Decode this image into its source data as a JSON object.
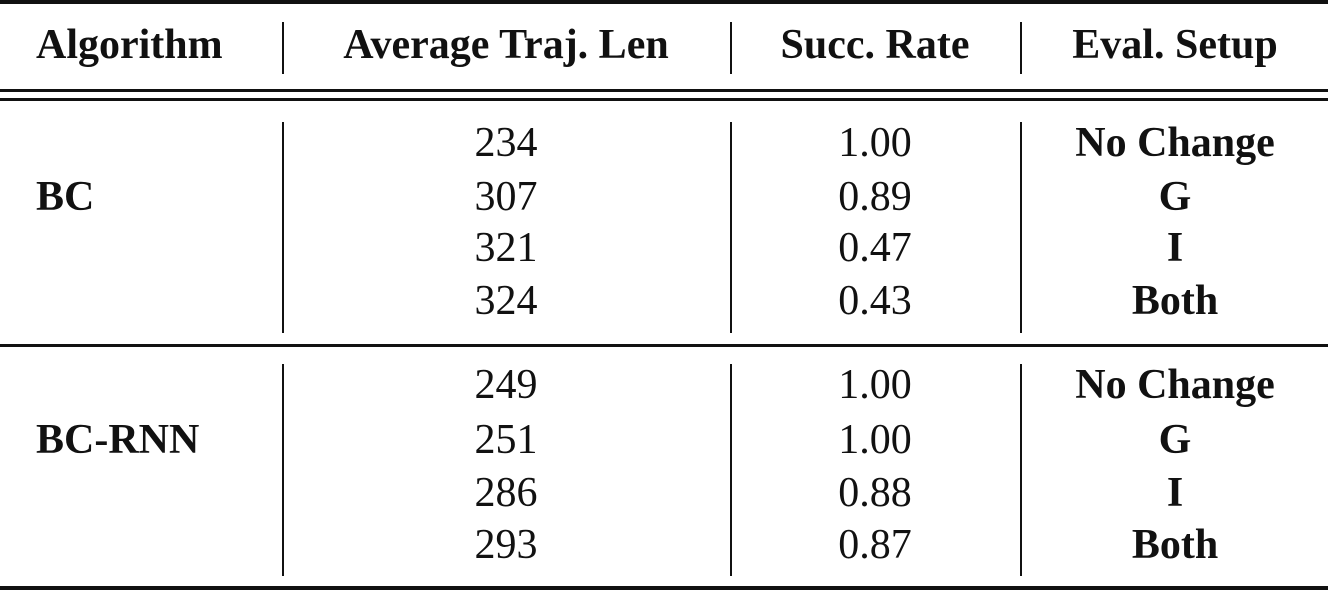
{
  "table": {
    "headers": [
      "Algorithm",
      "Average Traj. Len",
      "Succ. Rate",
      "Eval. Setup"
    ],
    "groups": [
      {
        "algorithm": "BC",
        "rows": [
          {
            "len": "234",
            "rate": "1.00",
            "setup": "No Change"
          },
          {
            "len": "307",
            "rate": "0.89",
            "setup": "G"
          },
          {
            "len": "321",
            "rate": "0.47",
            "setup": "I"
          },
          {
            "len": "324",
            "rate": "0.43",
            "setup": "Both"
          }
        ]
      },
      {
        "algorithm": "BC-RNN",
        "rows": [
          {
            "len": "249",
            "rate": "1.00",
            "setup": "No Change"
          },
          {
            "len": "251",
            "rate": "1.00",
            "setup": "G"
          },
          {
            "len": "286",
            "rate": "0.88",
            "setup": "I"
          },
          {
            "len": "293",
            "rate": "0.87",
            "setup": "Both"
          }
        ]
      }
    ]
  }
}
